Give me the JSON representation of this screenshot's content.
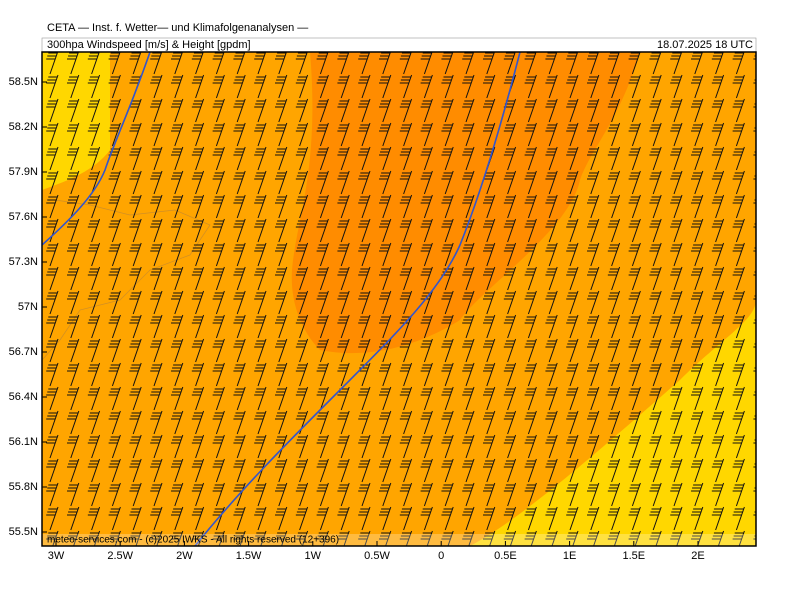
{
  "header": {
    "title": "CETA — Inst. f. Wetter— und Klimafolgenanalysen —",
    "subtitle": "300hpa Windspeed [m/s] & Height [gpdm]",
    "valid_time": "18.07.2025 18 UTC"
  },
  "map": {
    "lat_labels": [
      "58.5N",
      "58.2N",
      "57.9N",
      "57.6N",
      "57.3N",
      "57N",
      "56.7N",
      "56.4N",
      "56.1N",
      "55.8N",
      "55.5N"
    ],
    "lon_labels": [
      "3W",
      "2.5W",
      "2W",
      "1.5W",
      "1W",
      "0.5W",
      "0",
      "0.5E",
      "1E",
      "1.5E",
      "2E"
    ],
    "copyright": "meteo-services.com - (c)2025 IWKS - All rights reserved (12+396)"
  }
}
